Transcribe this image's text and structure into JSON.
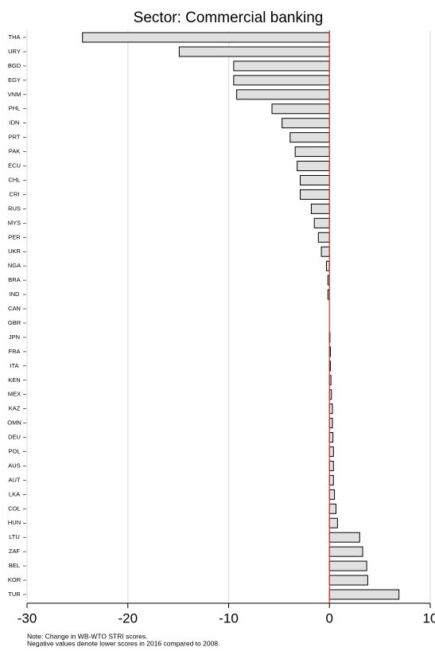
{
  "chart_data": {
    "type": "barh",
    "title": "Sector: Commercial banking",
    "categories": [
      "THA",
      "URY",
      "BGD",
      "EGY",
      "VNM",
      "PHL",
      "IDN",
      "PRT",
      "PAK",
      "ECU",
      "CHL",
      "CRI",
      "RUS",
      "MYS",
      "PER",
      "UKR",
      "NGA",
      "BRA",
      "IND",
      "CAN",
      "GBR",
      "JPN",
      "FRA",
      "ITA",
      "KEN",
      "MEX",
      "KAZ",
      "OMN",
      "DEU",
      "POL",
      "AUS",
      "AUT",
      "LKA",
      "COL",
      "HUN",
      "LTU",
      "ZAF",
      "BEL",
      "KOR",
      "TUR"
    ],
    "values": [
      -24.5,
      -14.9,
      -9.5,
      -9.5,
      -9.2,
      -5.7,
      -4.7,
      -3.9,
      -3.4,
      -3.2,
      -2.9,
      -2.9,
      -1.8,
      -1.5,
      -1.1,
      -0.8,
      -0.3,
      -0.15,
      -0.15,
      0,
      0,
      0.05,
      0.1,
      0.1,
      0.15,
      0.2,
      0.3,
      0.3,
      0.35,
      0.4,
      0.4,
      0.4,
      0.5,
      0.65,
      0.8,
      3.0,
      3.3,
      3.7,
      3.8,
      6.9
    ],
    "color": "#e0e0e0",
    "zero_line_color": "#e0302a",
    "xlim": [
      -30,
      10
    ],
    "xticks": [
      -30,
      -20,
      -10,
      0,
      10
    ],
    "grid": true,
    "notes": [
      "Note: Change in WB-WTO STRI scores.",
      "Negative values denote lower scores in 2016 compared to 2008."
    ]
  }
}
